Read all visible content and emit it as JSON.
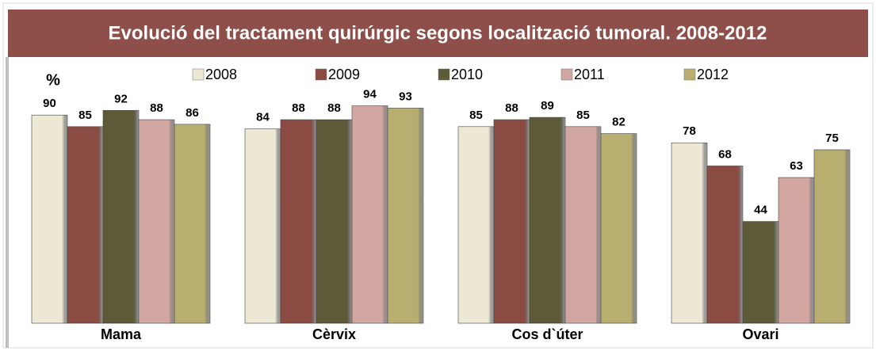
{
  "chart_data": {
    "type": "bar",
    "title": "Evolució del tractament quirúrgic segons localització tumoral. 2008-2012",
    "ylabel": "%",
    "categories": [
      "Mama",
      "Cèrvix",
      "Cos d`úter",
      "Ovari"
    ],
    "series": [
      {
        "name": "2008",
        "color": "#ECE8D4",
        "values": [
          90,
          84,
          85,
          78
        ]
      },
      {
        "name": "2009",
        "color": "#8A4B43",
        "values": [
          85,
          88,
          88,
          68
        ]
      },
      {
        "name": "2010",
        "color": "#5C5A37",
        "values": [
          92,
          88,
          89,
          44
        ]
      },
      {
        "name": "2011",
        "color": "#D3A7A1",
        "values": [
          88,
          94,
          85,
          63
        ]
      },
      {
        "name": "2012",
        "color": "#B7AE70",
        "values": [
          86,
          93,
          82,
          75
        ]
      }
    ],
    "ylim": [
      0,
      100
    ]
  }
}
